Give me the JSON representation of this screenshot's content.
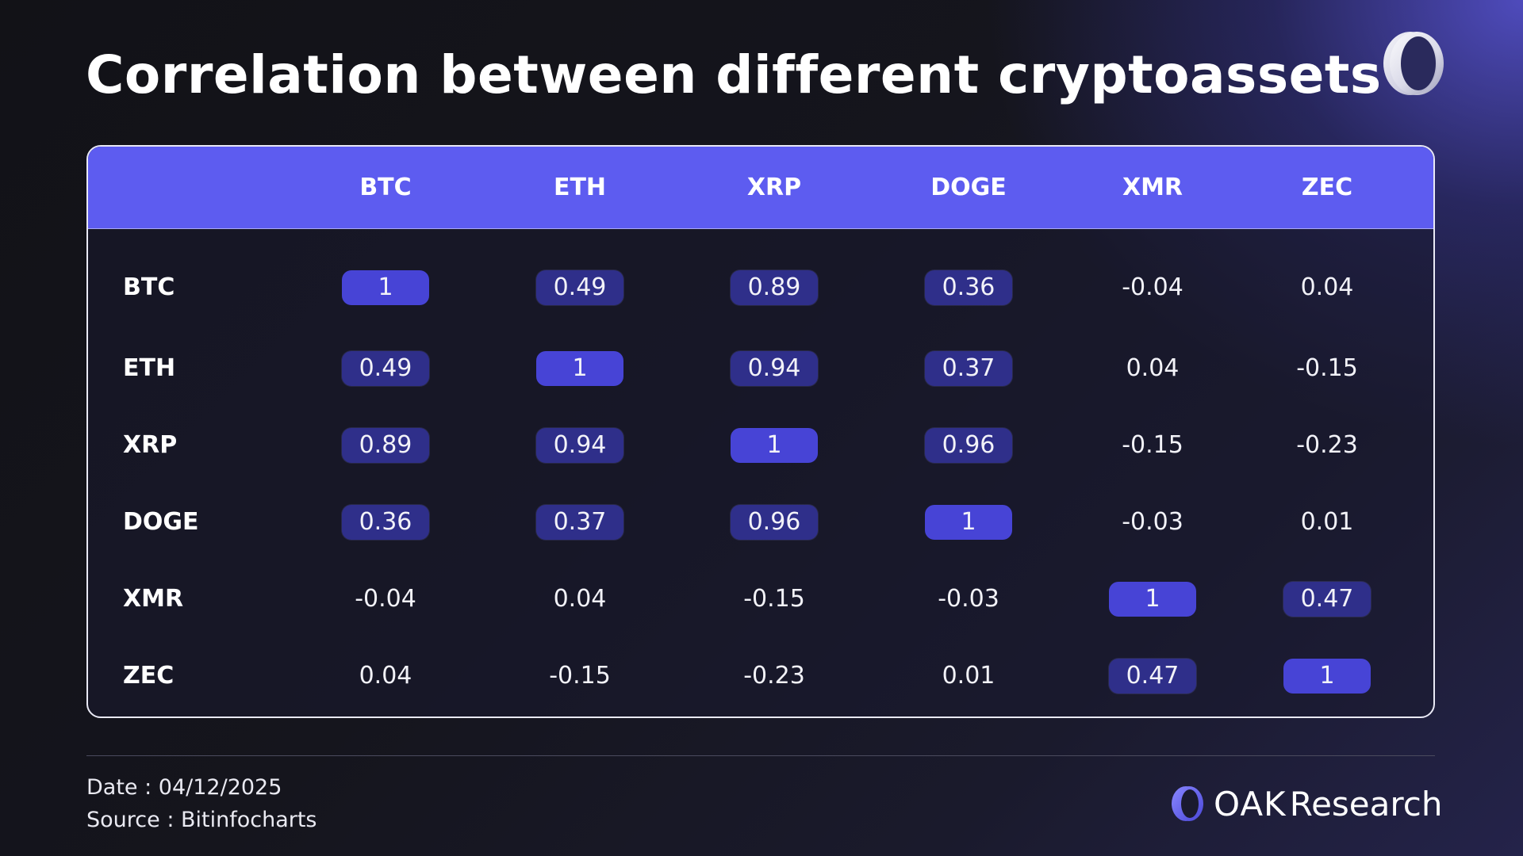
{
  "title": "Correlation between different cryptoassets",
  "chart_data": {
    "type": "table",
    "columns": [
      "BTC",
      "ETH",
      "XRP",
      "DOGE",
      "XMR",
      "ZEC"
    ],
    "rows": [
      {
        "label": "BTC",
        "values": [
          "1",
          "0.49",
          "0.89",
          "0.36",
          "-0.04",
          "0.04"
        ],
        "highlight": [
          true,
          true,
          true,
          true,
          false,
          false
        ]
      },
      {
        "label": "ETH",
        "values": [
          "0.49",
          "1",
          "0.94",
          "0.37",
          "0.04",
          "-0.15"
        ],
        "highlight": [
          true,
          true,
          true,
          true,
          false,
          false
        ]
      },
      {
        "label": "XRP",
        "values": [
          "0.89",
          "0.94",
          "1",
          "0.96",
          "-0.15",
          "-0.23"
        ],
        "highlight": [
          true,
          true,
          true,
          true,
          false,
          false
        ]
      },
      {
        "label": "DOGE",
        "values": [
          "0.36",
          "0.37",
          "0.96",
          "1",
          "-0.03",
          "0.01"
        ],
        "highlight": [
          true,
          true,
          true,
          true,
          false,
          false
        ]
      },
      {
        "label": "XMR",
        "values": [
          "-0.04",
          "0.04",
          "-0.15",
          "-0.03",
          "1",
          "0.47"
        ],
        "highlight": [
          false,
          false,
          false,
          false,
          true,
          true
        ]
      },
      {
        "label": "ZEC",
        "values": [
          "0.04",
          "-0.15",
          "-0.23",
          "0.01",
          "0.47",
          "1"
        ],
        "highlight": [
          false,
          false,
          false,
          false,
          true,
          true
        ]
      }
    ]
  },
  "footer": {
    "date": "Date : 04/12/2025",
    "source": "Source : Bitinfocharts"
  },
  "brand": {
    "name_bold": "OAK",
    "name_light": "Research",
    "logo_icon": "oak-ring-icon"
  },
  "colors": {
    "header_bg": "#5d5cf0",
    "cell_highlight": "#2f2f8a",
    "cell_diagonal": "#4744d6"
  }
}
